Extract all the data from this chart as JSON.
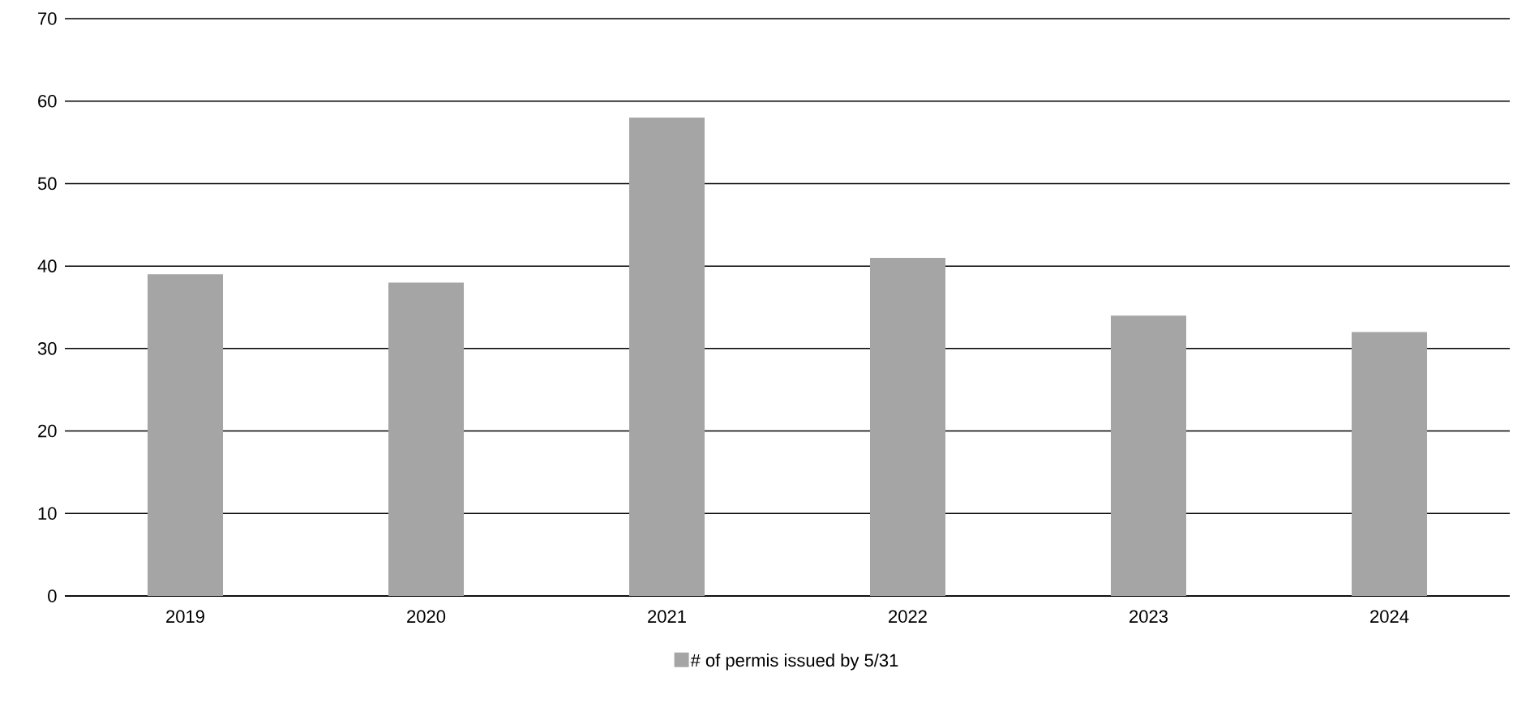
{
  "chart_data": {
    "type": "bar",
    "categories": [
      "2019",
      "2020",
      "2021",
      "2022",
      "2023",
      "2024"
    ],
    "series": [
      {
        "name": "# of permis issued by 5/31",
        "color": "#a5a5a5",
        "values": [
          39,
          38,
          58,
          41,
          34,
          32
        ]
      }
    ],
    "ylim": [
      0,
      70
    ],
    "yticks": [
      0,
      10,
      20,
      30,
      40,
      50,
      60,
      70
    ],
    "grid": "y",
    "legend": "bottom"
  }
}
